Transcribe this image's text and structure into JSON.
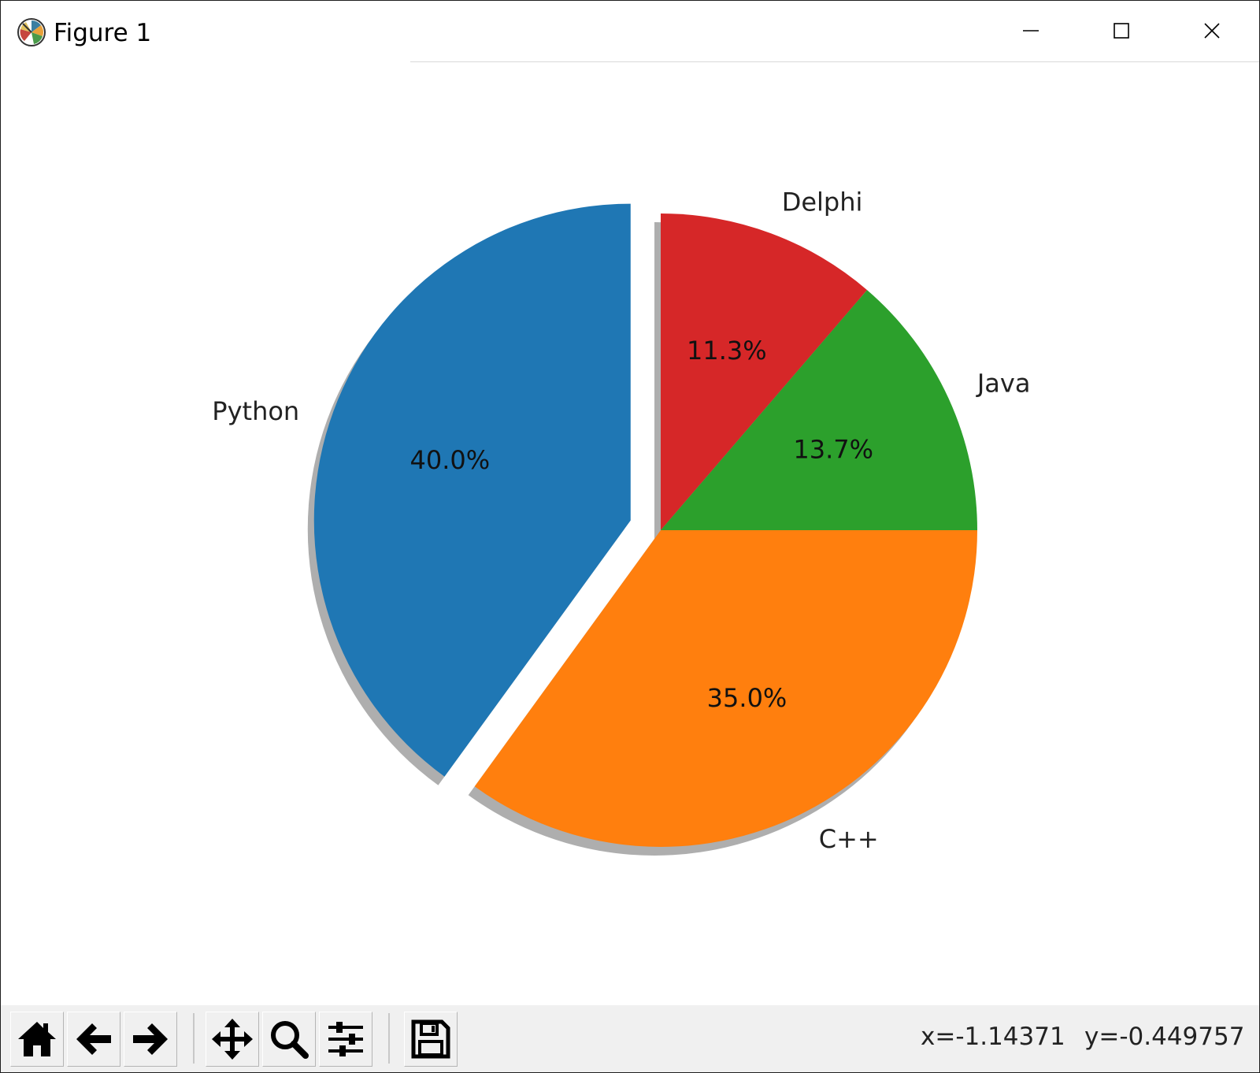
{
  "window": {
    "title": "Figure 1",
    "controls": {
      "minimize_icon": "minimize-icon",
      "maximize_icon": "maximize-icon",
      "close_icon": "close-icon"
    }
  },
  "chart_data": {
    "type": "pie",
    "labels": [
      "Delphi",
      "Java",
      "C++",
      "Python"
    ],
    "values": [
      11.3,
      13.7,
      35.0,
      40.0
    ],
    "autopct_labels": [
      "11.3%",
      "13.7%",
      "35.0%",
      "40.0%"
    ],
    "colors": [
      "#d62728",
      "#2ca02c",
      "#ff7f0e",
      "#1f77b4"
    ],
    "explode": [
      0,
      0,
      0,
      0.1
    ],
    "shadow": true,
    "startangle": 90,
    "direction": "clockwise"
  },
  "toolbar": {
    "buttons": [
      {
        "name": "home",
        "icon": "home-icon"
      },
      {
        "name": "back",
        "icon": "back-arrow-icon"
      },
      {
        "name": "forward",
        "icon": "forward-arrow-icon"
      },
      {
        "name": "pan",
        "icon": "pan-move-icon"
      },
      {
        "name": "zoom",
        "icon": "zoom-magnifier-icon"
      },
      {
        "name": "configure-subplots",
        "icon": "sliders-icon"
      },
      {
        "name": "save",
        "icon": "floppy-disk-icon"
      }
    ],
    "coord_x": "x=-1.14371",
    "coord_y": "y=-0.449757"
  }
}
